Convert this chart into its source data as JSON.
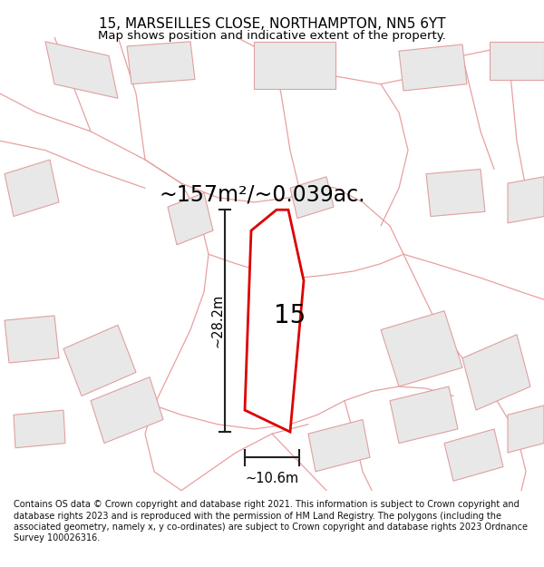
{
  "title_line1": "15, MARSEILLES CLOSE, NORTHAMPTON, NN5 6YT",
  "title_line2": "Map shows position and indicative extent of the property.",
  "area_text": "~157m²/~0.039ac.",
  "label_15": "15",
  "dim_height": "~28.2m",
  "dim_width": "~10.6m",
  "footer_text": "Contains OS data © Crown copyright and database right 2021. This information is subject to Crown copyright and database rights 2023 and is reproduced with the permission of HM Land Registry. The polygons (including the associated geometry, namely x, y co-ordinates) are subject to Crown copyright and database rights 2023 Ordnance Survey 100026316.",
  "bg_color": "#ffffff",
  "map_bg": "#ffffff",
  "plot_color": "#dd0000",
  "plot_fill": "#ffffff",
  "road_color": "#e8a0a0",
  "bldg_edge_color": "#e0a0a0",
  "bldg_fill_color": "#e8e8e8",
  "dim_color": "#222222",
  "title_fontsize": 11,
  "subtitle_fontsize": 9.5,
  "area_fontsize": 17,
  "label_fontsize": 20,
  "dim_fontsize": 10.5,
  "footer_fontsize": 7.0
}
